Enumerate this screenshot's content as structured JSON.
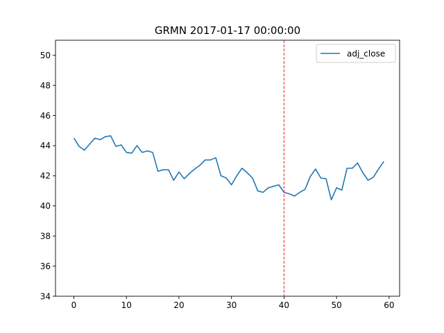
{
  "chart_data": {
    "type": "line",
    "title": "GRMN 2017-01-17 00:00:00",
    "xlabel": "",
    "ylabel": "",
    "xlim": [
      -3.5,
      62
    ],
    "ylim": [
      34,
      51
    ],
    "xticks": [
      0,
      10,
      20,
      30,
      40,
      50,
      60
    ],
    "yticks": [
      34,
      36,
      38,
      40,
      42,
      44,
      46,
      48,
      50
    ],
    "legend_position": "top-right",
    "vline": {
      "x": 40,
      "color": "#d62728",
      "style": "dashed"
    },
    "series": [
      {
        "name": "adj_close",
        "color": "#1f77b4",
        "x": [
          0,
          1,
          2,
          3,
          4,
          5,
          6,
          7,
          8,
          9,
          10,
          11,
          12,
          13,
          14,
          15,
          16,
          17,
          18,
          19,
          20,
          21,
          22,
          23,
          24,
          25,
          26,
          27,
          28,
          29,
          30,
          31,
          32,
          33,
          34,
          35,
          36,
          37,
          38,
          39,
          40,
          41,
          42,
          43,
          44,
          45,
          46,
          47,
          48,
          49,
          50,
          51,
          52,
          53,
          54,
          55,
          56,
          57,
          58,
          59
        ],
        "values": [
          44.5,
          43.95,
          43.7,
          44.1,
          44.5,
          44.4,
          44.6,
          44.65,
          43.95,
          44.05,
          43.55,
          43.5,
          44.0,
          43.55,
          43.65,
          43.55,
          42.3,
          42.4,
          42.4,
          41.7,
          42.25,
          41.8,
          42.15,
          42.45,
          42.7,
          43.05,
          43.05,
          43.2,
          42.0,
          41.85,
          41.4,
          42.0,
          42.5,
          42.2,
          41.85,
          41.0,
          40.9,
          41.2,
          41.3,
          41.4,
          40.9,
          40.8,
          40.65,
          40.9,
          41.1,
          41.95,
          42.45,
          41.85,
          41.8,
          40.4,
          41.2,
          41.05,
          42.5,
          42.5,
          42.85,
          42.2,
          41.7,
          41.9,
          42.45,
          42.95
        ]
      }
    ]
  }
}
